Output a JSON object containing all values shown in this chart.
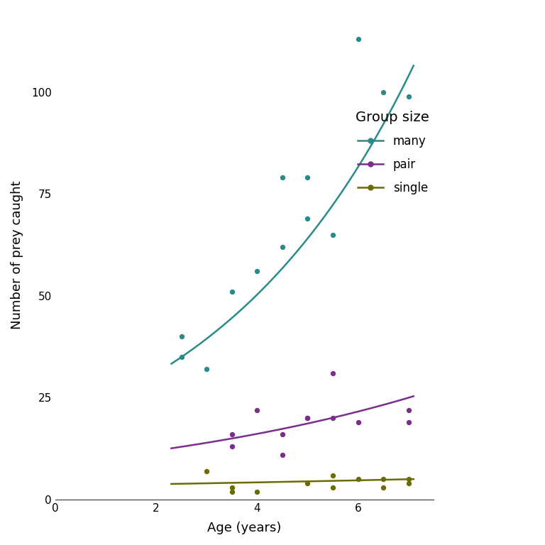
{
  "many_x": [
    2.5,
    2.5,
    3.0,
    3.5,
    4.0,
    4.5,
    4.5,
    5.0,
    5.0,
    5.5,
    6.0,
    6.5,
    7.0
  ],
  "many_y": [
    40,
    35,
    32,
    51,
    56,
    79,
    62,
    69,
    79,
    65,
    113,
    100,
    99
  ],
  "pair_x": [
    3.5,
    3.5,
    4.0,
    4.5,
    4.5,
    5.0,
    5.0,
    5.5,
    5.5,
    6.0,
    7.0,
    7.0
  ],
  "pair_y": [
    13,
    16,
    22,
    16,
    11,
    20,
    20,
    20,
    31,
    19,
    22,
    19
  ],
  "single_x": [
    3.0,
    3.5,
    3.5,
    4.0,
    5.0,
    5.5,
    5.5,
    6.0,
    6.5,
    6.5,
    7.0,
    7.0
  ],
  "single_y": [
    7,
    3,
    2,
    2,
    4,
    3,
    6,
    5,
    3,
    5,
    4,
    5
  ],
  "many_color": "#2a8a8a",
  "pair_color": "#7b2d8b",
  "single_color": "#6b6b00",
  "many_glm_intercept": 2.95,
  "many_glm_slope": 0.242,
  "pair_glm_intercept": 2.197,
  "pair_glm_slope": 0.146,
  "single_glm_intercept": 1.218,
  "single_glm_slope": 0.056,
  "xlim": [
    0,
    7.5
  ],
  "ylim": [
    0,
    120
  ],
  "xlabel": "Age (years)",
  "ylabel": "Number of prey caught",
  "legend_title": "Group size",
  "legend_labels": [
    "many",
    "pair",
    "single"
  ],
  "xticks": [
    0,
    2,
    4,
    6
  ],
  "yticks": [
    0,
    25,
    50,
    75,
    100
  ],
  "background_color": "#ffffff",
  "marker_size": 28,
  "line_width": 1.8,
  "figsize": [
    7.68,
    7.68
  ],
  "dpi": 100
}
